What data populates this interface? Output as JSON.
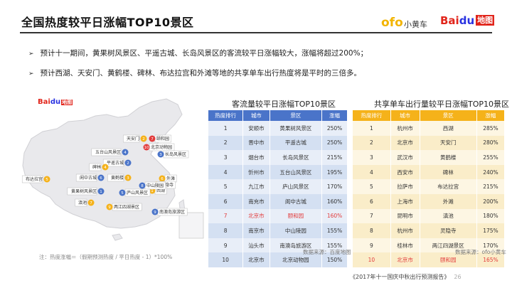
{
  "header": {
    "title": "全国热度较平日涨幅TOP10景区",
    "logo_ofo": "ofo",
    "logo_ofo_cn": "小黄车",
    "logo_bai": "Bai",
    "logo_du": "du",
    "logo_ditu": "地图"
  },
  "bullets": [
    "预计十一期间，黄果树风景区、平遥古城、长岛风景区的客流较平日涨幅较大，涨幅将超过200%；",
    "预计西湖、天安门、黄鹤楼、碑林、布达拉宫和外滩等地的共享单车出行热度将是平时的三倍多。"
  ],
  "map": {
    "logo_bai": "Bai",
    "logo_du": "du",
    "logo_ditu": "地图",
    "markers": [
      {
        "label": "天安门",
        "num": "2",
        "color": "#f5b21a"
      },
      {
        "label": "颐和园",
        "num": "7",
        "color": "#e23b3b"
      },
      {
        "label": "北京动物园",
        "num": "10",
        "color": "#e23b3b"
      },
      {
        "label": "五台山风景区",
        "num": "4",
        "color": "#4a74c9"
      },
      {
        "label": "长岛风景区",
        "num": "3",
        "color": "#4a74c9"
      },
      {
        "label": "平遥古城",
        "num": "2",
        "color": "#4a74c9"
      },
      {
        "label": "碑林",
        "num": "4",
        "color": "#f5b21a"
      },
      {
        "label": "阆中古城",
        "num": "6",
        "color": "#4a74c9"
      },
      {
        "label": "黄鹤楼",
        "num": "3",
        "color": "#f5b21a"
      },
      {
        "label": "外滩",
        "num": "6",
        "color": "#f5b21a"
      },
      {
        "label": "灵隐寺",
        "num": "8",
        "color": "#f5b21a"
      },
      {
        "label": "西湖",
        "num": "1",
        "color": "#f5b21a"
      },
      {
        "label": "中山陵园",
        "num": "8",
        "color": "#4a74c9"
      },
      {
        "label": "布达拉宫",
        "num": "5",
        "color": "#f5b21a"
      },
      {
        "label": "黄果树风景区",
        "num": "1",
        "color": "#4a74c9"
      },
      {
        "label": "庐山风景区",
        "num": "5",
        "color": "#4a74c9"
      },
      {
        "label": "滇池",
        "num": "7",
        "color": "#f5b21a"
      },
      {
        "label": "两江四湖景区",
        "num": "9",
        "color": "#f5b21a"
      },
      {
        "label": "南澳岛旅游区",
        "num": "9",
        "color": "#4a74c9"
      }
    ]
  },
  "table1": {
    "title": "客流量较平日涨幅TOP10景区",
    "headers": [
      "热度排行",
      "城市",
      "景区",
      "涨幅"
    ],
    "rows": [
      [
        "1",
        "安顺市",
        "黄果树风景区",
        "250%"
      ],
      [
        "2",
        "晋中市",
        "平遥古城",
        "250%"
      ],
      [
        "3",
        "烟台市",
        "长岛风景区",
        "215%"
      ],
      [
        "4",
        "忻州市",
        "五台山风景区",
        "195%"
      ],
      [
        "5",
        "九江市",
        "庐山风景区",
        "170%"
      ],
      [
        "6",
        "南充市",
        "阆中古城",
        "160%"
      ],
      [
        "7",
        "北京市",
        "颐和园",
        "160%"
      ],
      [
        "8",
        "南京市",
        "中山陵园",
        "155%"
      ],
      [
        "9",
        "汕头市",
        "南澳岛旅游区",
        "155%"
      ],
      [
        "10",
        "北京市",
        "北京动物园",
        "150%"
      ]
    ],
    "highlight_row": 6,
    "source": "数据来源：百度地图"
  },
  "table2": {
    "title": "共享单车出行量较平日涨幅TOP10景区",
    "headers": [
      "热度排行",
      "城市",
      "景区",
      "涨幅"
    ],
    "rows": [
      [
        "1",
        "杭州市",
        "西湖",
        "285%"
      ],
      [
        "2",
        "北京市",
        "天安门",
        "280%"
      ],
      [
        "3",
        "武汉市",
        "黄鹤楼",
        "255%"
      ],
      [
        "4",
        "西安市",
        "碑林",
        "240%"
      ],
      [
        "5",
        "拉萨市",
        "布达拉宫",
        "215%"
      ],
      [
        "6",
        "上海市",
        "外滩",
        "200%"
      ],
      [
        "7",
        "昆明市",
        "滇池",
        "180%"
      ],
      [
        "8",
        "杭州市",
        "灵隐寺",
        "175%"
      ],
      [
        "9",
        "桂林市",
        "两江四湖景区",
        "170%"
      ],
      [
        "10",
        "北京市",
        "颐和园",
        "165%"
      ]
    ],
    "highlight_row": 9,
    "source": "数据来源：ofo小黄车"
  },
  "note": "注：热度涨幅＝（假期预测热度 / 平日热度 - 1）*100%",
  "footer": {
    "report": "《2017年十一国庆中秋出行预测报告》",
    "page": "26"
  },
  "colors": {
    "blue": "#4a74c9",
    "yellow": "#f5b21a",
    "red": "#e23b3b"
  }
}
